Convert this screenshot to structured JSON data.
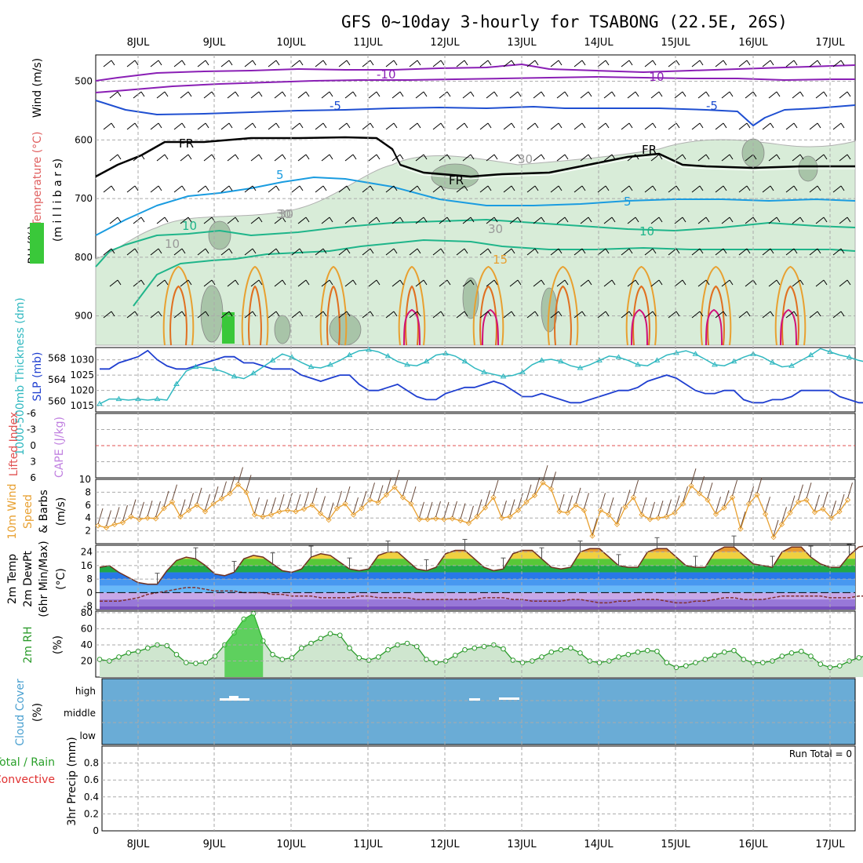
{
  "title": "GFS 0~10day 3-hourly for TSABONG (22.5E, 26S)",
  "days": [
    "8JUL",
    "9JUL",
    "10JUL",
    "11JUL",
    "12JUL",
    "13JUL",
    "14JUL",
    "15JUL",
    "16JUL",
    "17JUL"
  ],
  "colors": {
    "grid": "#aaaaaa",
    "temp_minus10": "#8a1fb5",
    "temp_minus5": "#1f4fd1",
    "freezing": "#000000",
    "temp_5": "#1a9ce0",
    "temp_10": "#1fb58a",
    "temp_15": "#e8a030",
    "temp_20": "#e07020",
    "temp_25": "#d0107a",
    "rh_shade": "#d8ecd8",
    "slp": "#1f3fd0",
    "thickness": "#30b8c0",
    "wind10m": "#e8a030",
    "cloud_bg": "#6aacd6",
    "rh2m": "#2a9a2a",
    "barb": "#000000"
  },
  "panels": {
    "upper": {
      "ylabel_wind": "Wind (m/s)",
      "ylabel_temp": "Temperature (°C)",
      "ylabel_rh": "RH (%)",
      "ylabel_units": "(m i l l i b a r s)",
      "yticks": [
        "500",
        "600",
        "700",
        "800",
        "900"
      ],
      "contour_labels": [
        "-10",
        "-10",
        "-5",
        "-5",
        "FR",
        "FR",
        "FR",
        "5",
        "5",
        "10",
        "15",
        "10",
        "30",
        "30",
        "30",
        "30",
        "10"
      ]
    },
    "slp": {
      "ylabel_left": "1000-500mb Thickness (dm)",
      "ylabel_right": "SLP (mb)",
      "yticks_left": [
        "568",
        "564",
        "560"
      ],
      "yticks_right": [
        "1030",
        "1025",
        "1020",
        "1015"
      ]
    },
    "cape": {
      "ylabel_left": "Lifted Index",
      "ylabel_right": "CAPE (J/kg)",
      "yticks": [
        "-6",
        "-3",
        "0",
        "3",
        "6"
      ]
    },
    "wind10m": {
      "ylabel1": "10m Wind",
      "ylabel2": "Speed",
      "ylabel3": "& Barbs",
      "ylabel4": "(m/s)",
      "yticks": [
        "10",
        "8",
        "6",
        "4",
        "2"
      ]
    },
    "temp2m": {
      "ylabel1": "2m Temp",
      "ylabel2": "2m DewPt",
      "ylabel3": "(6hr Min/Max)",
      "ylabel4": "(°C)",
      "yticks": [
        "24",
        "16",
        "8",
        "0",
        "-8"
      ]
    },
    "rh2m": {
      "ylabel1": "2m RH",
      "ylabel2": "(%)",
      "yticks": [
        "80",
        "60",
        "40",
        "20"
      ]
    },
    "cloud": {
      "ylabel1": "Cloud Cover",
      "ylabel2": "(%)",
      "levels": [
        "high",
        "middle",
        "low"
      ]
    },
    "precip": {
      "ylabel1": "Total / Rain",
      "ylabel2": "Convective",
      "ylabel3": "3hr Precip (mm)",
      "yticks": [
        "0.8",
        "0.6",
        "0.4",
        "0.2",
        "0"
      ],
      "run_total": "Run Total = 0"
    }
  },
  "chart_data": [
    {
      "type": "line",
      "title": "SLP (mb)",
      "ylim": [
        1014,
        1034
      ],
      "x_start": "07JUL 12Z",
      "x_step_hours": 3,
      "series": [
        {
          "name": "SLP",
          "values": [
            1027,
            1027,
            1029,
            1030,
            1031,
            1033,
            1030,
            1028,
            1027,
            1027,
            1028,
            1029,
            1030,
            1031,
            1031,
            1029,
            1029,
            1028,
            1027,
            1027,
            1027,
            1025,
            1024,
            1023,
            1024,
            1025,
            1025,
            1022,
            1020,
            1020,
            1021,
            1022,
            1020,
            1018,
            1017,
            1017,
            1019,
            1020,
            1021,
            1021,
            1022,
            1023,
            1022,
            1020,
            1018,
            1018,
            1019,
            1018,
            1017,
            1016,
            1016,
            1017,
            1018,
            1019,
            1020,
            1020,
            1021,
            1023,
            1024,
            1025,
            1024,
            1022,
            1020,
            1019,
            1019,
            1020,
            1020,
            1017,
            1016,
            1016,
            1017,
            1017,
            1018,
            1020,
            1020,
            1020,
            1020,
            1018,
            1017,
            1016,
            1016,
            1018,
            1018,
            1019,
            1020,
            1021
          ]
        }
      ]
    },
    {
      "type": "line",
      "title": "1000-500mb Thickness (dm)",
      "ylim": [
        558,
        570
      ],
      "x_start": "07JUL 12Z",
      "x_step_hours": 3,
      "series": [
        {
          "name": "Thickness",
          "values": [
            559.5,
            560.4,
            560.4,
            560.2,
            560.4,
            560.2,
            560.4,
            560.2,
            563.2,
            565.6,
            566.4,
            566.2,
            566.0,
            565.4,
            564.6,
            564.2,
            565.2,
            566.4,
            567.6,
            568.8,
            568.2,
            567.2,
            566.4,
            566.2,
            566.8,
            567.6,
            568.6,
            569.4,
            569.6,
            569.2,
            568.4,
            567.4,
            566.8,
            566.6,
            567.4,
            568.6,
            568.9,
            568.4,
            567.4,
            566.2,
            565.4,
            565.0,
            564.6,
            564.8,
            565.4,
            566.8,
            567.6,
            567.8,
            567.4,
            566.6,
            566.2,
            566.8,
            567.6,
            568.4,
            568.2,
            567.6,
            566.8,
            566.6,
            567.6,
            568.6,
            569.0,
            569.4,
            568.8,
            567.8,
            566.8,
            566.6,
            567.4,
            568.2,
            568.8,
            568.2,
            567.2,
            566.4,
            566.6,
            567.6,
            568.6,
            569.8,
            569.2,
            568.6,
            568.2,
            567.6,
            567.2,
            567.0,
            567.6,
            568.0,
            568.4,
            568.0
          ]
        }
      ]
    },
    {
      "type": "line",
      "title": "10m Wind Speed (m/s)",
      "ylim": [
        0,
        10
      ],
      "x_start": "07JUL 12Z",
      "x_step_hours": 3,
      "series": [
        {
          "name": "10m Wind Speed",
          "values": [
            2.8,
            2.5,
            3.0,
            3.3,
            4.2,
            3.8,
            4.0,
            3.9,
            5.5,
            6.5,
            4.2,
            5.2,
            6.0,
            5.0,
            6.2,
            7.0,
            7.8,
            9.2,
            8.0,
            4.5,
            4.2,
            4.5,
            5.0,
            5.2,
            5.0,
            5.4,
            6.0,
            4.7,
            3.7,
            5.5,
            6.2,
            4.5,
            5.5,
            6.8,
            6.4,
            7.6,
            8.8,
            7.2,
            6.2,
            3.8,
            3.8,
            3.9,
            3.8,
            3.9,
            3.6,
            3.2,
            4.2,
            5.6,
            7.2,
            4.0,
            4.2,
            5.2,
            6.5,
            7.5,
            9.5,
            8.5,
            5.0,
            4.8,
            6.0,
            5.2,
            1.2,
            5.2,
            4.5,
            3.0,
            5.7,
            7.2,
            4.5,
            3.8,
            4.0,
            4.2,
            4.8,
            6.2,
            9.0,
            7.8,
            6.8,
            4.6,
            5.6,
            7.2,
            2.3,
            6.2,
            7.6,
            4.6,
            1.0,
            3.0,
            4.8,
            6.5,
            6.8,
            4.9,
            5.4,
            4.0,
            5.0,
            6.8
          ]
        }
      ]
    },
    {
      "type": "area",
      "title": "2m Temp (°C)",
      "ylim": [
        -10,
        28
      ],
      "x_start": "07JUL 12Z",
      "x_step_hours": 3,
      "series": [
        {
          "name": "2m Temp",
          "values": [
            15,
            16,
            12,
            9,
            6,
            5,
            5,
            13,
            19,
            21,
            20,
            16,
            11,
            10,
            12,
            20,
            22,
            21,
            17,
            13,
            12,
            14,
            21,
            23,
            22,
            18,
            14,
            13,
            14,
            22,
            24,
            24,
            19,
            14,
            13,
            15,
            23,
            25,
            25,
            20,
            15,
            13,
            14,
            23,
            25,
            25,
            20,
            15,
            14,
            15,
            24,
            26,
            26,
            21,
            16,
            15,
            15,
            24,
            26,
            26,
            21,
            16,
            15,
            15,
            24,
            27,
            27,
            22,
            17,
            16,
            15,
            24,
            27,
            27,
            21,
            17,
            15,
            15,
            22,
            27,
            28,
            22,
            18,
            16,
            15,
            14,
            14
          ]
        }
      ]
    },
    {
      "type": "line",
      "title": "2m DewPt (°C)",
      "ylim": [
        -10,
        28
      ],
      "x_start": "07JUL 12Z",
      "x_step_hours": 3,
      "series": [
        {
          "name": "2m DewPt",
          "values": [
            -5,
            -5,
            -5,
            -4,
            -3,
            -1,
            0,
            1,
            2,
            3,
            3,
            2,
            1,
            1,
            1,
            0,
            0,
            0,
            -1,
            -1,
            -2,
            -2,
            -2,
            -3,
            -3,
            -3,
            -3,
            -2,
            -2,
            -3,
            -3,
            -3,
            -3,
            -4,
            -4,
            -4,
            -4,
            -4,
            -4,
            -4,
            -3,
            -3,
            -3,
            -4,
            -4,
            -5,
            -5,
            -5,
            -5,
            -4,
            -4,
            -5,
            -6,
            -6,
            -5,
            -5,
            -4,
            -4,
            -4,
            -5,
            -6,
            -6,
            -5,
            -5,
            -4,
            -3,
            -3,
            -4,
            -4,
            -4,
            -3,
            -2,
            -2,
            -2,
            -2,
            -2,
            -3,
            -3,
            -3,
            -2,
            -2,
            -2,
            -3,
            -3,
            -2,
            -2,
            -2
          ]
        }
      ]
    },
    {
      "type": "area",
      "title": "2m RH (%)",
      "ylim": [
        0,
        82
      ],
      "x_start": "07JUL 12Z",
      "x_step_hours": 3,
      "series": [
        {
          "name": "2m RH",
          "values": [
            22,
            20,
            25,
            30,
            32,
            36,
            40,
            39,
            28,
            18,
            17,
            18,
            26,
            40,
            55,
            72,
            79,
            45,
            28,
            22,
            24,
            36,
            42,
            48,
            54,
            52,
            36,
            24,
            21,
            25,
            34,
            40,
            42,
            38,
            22,
            18,
            20,
            27,
            34,
            36,
            38,
            40,
            35,
            21,
            18,
            20,
            25,
            31,
            34,
            36,
            30,
            20,
            18,
            20,
            25,
            28,
            31,
            33,
            32,
            18,
            12,
            14,
            18,
            22,
            27,
            31,
            33,
            22,
            18,
            18,
            20,
            26,
            30,
            32,
            26,
            16,
            12,
            14,
            20,
            24,
            28,
            31,
            33,
            22,
            16,
            18,
            24,
            30,
            32,
            34,
            32
          ]
        }
      ]
    },
    {
      "type": "bar",
      "title": "3hr Precip (mm)",
      "ylim": [
        0,
        1.0
      ],
      "x_start": "07JUL 12Z",
      "x_step_hours": 3,
      "series": [
        {
          "name": "Total",
          "values": []
        },
        {
          "name": "Convective",
          "values": []
        }
      ]
    }
  ]
}
